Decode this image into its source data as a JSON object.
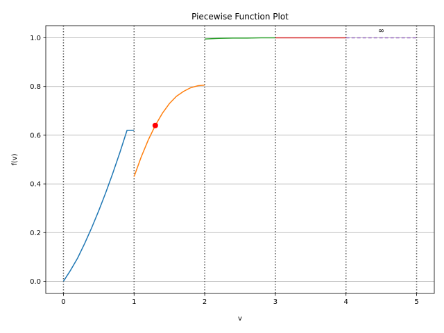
{
  "chart_data": {
    "type": "line",
    "title": "Piecewise Function Plot",
    "xlabel": "v",
    "ylabel": "f(v)",
    "xlim": [
      -0.25,
      5.25
    ],
    "ylim": [
      -0.05,
      1.05
    ],
    "xticks": [
      0,
      1,
      2,
      3,
      4,
      5
    ],
    "xtick_labels": [
      "0",
      "1",
      "2",
      "3",
      "4",
      "5"
    ],
    "yticks": [
      0.0,
      0.2,
      0.4,
      0.6,
      0.8,
      1.0
    ],
    "ytick_labels": [
      "0.0",
      "0.2",
      "0.4",
      "0.6",
      "0.8",
      "1.0"
    ],
    "grid": "horizontal",
    "vertical_dotted_lines_at": [
      0,
      1,
      2,
      3,
      4,
      5
    ],
    "series": [
      {
        "color": "#1f77b4",
        "style": "solid",
        "x": [
          0.0,
          0.1,
          0.2,
          0.3,
          0.4,
          0.5,
          0.6,
          0.7,
          0.8,
          0.9,
          1.0
        ],
        "y": [
          0.0,
          0.045,
          0.095,
          0.155,
          0.22,
          0.29,
          0.365,
          0.445,
          0.53,
          0.62,
          0.62
        ]
      },
      {
        "color": "#ff7f0e",
        "style": "solid",
        "x": [
          1.0,
          1.1,
          1.2,
          1.3,
          1.4,
          1.5,
          1.6,
          1.7,
          1.8,
          1.9,
          2.0
        ],
        "y": [
          0.43,
          0.51,
          0.58,
          0.64,
          0.69,
          0.73,
          0.76,
          0.78,
          0.795,
          0.803,
          0.806
        ]
      },
      {
        "color": "#2ca02c",
        "style": "solid",
        "x": [
          2.0,
          2.2,
          2.4,
          2.6,
          2.8,
          3.0
        ],
        "y": [
          0.995,
          0.998,
          0.999,
          0.999,
          1.0,
          1.0
        ]
      },
      {
        "color": "#d62728",
        "style": "solid",
        "x": [
          3.0,
          4.0
        ],
        "y": [
          1.0,
          1.0
        ]
      },
      {
        "color": "#9467bd",
        "style": "dashed",
        "x": [
          4.0,
          5.0
        ],
        "y": [
          1.0,
          1.0
        ]
      }
    ],
    "points": [
      {
        "x": 1.3,
        "y": 0.64,
        "color": "#ff0000"
      }
    ],
    "annotations": [
      {
        "text": "∞",
        "x": 4.5,
        "y": 1.02
      }
    ]
  }
}
